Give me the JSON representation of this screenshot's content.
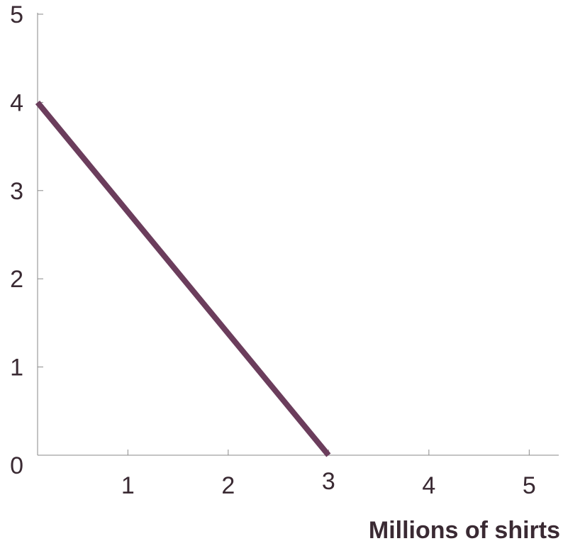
{
  "chart_data": {
    "type": "line",
    "title": "",
    "xlabel": "Millions of shirts",
    "ylabel": "",
    "x_ticks": [
      "1",
      "2",
      "3",
      "4",
      "5"
    ],
    "y_ticks": [
      "0",
      "1",
      "2",
      "3",
      "4",
      "5"
    ],
    "xlim": [
      0.1,
      5.4
    ],
    "ylim": [
      0,
      5
    ],
    "grid": false,
    "series": [
      {
        "x": [
          0.1,
          3
        ],
        "y": [
          4,
          0
        ],
        "color": "#6b3d5c"
      }
    ]
  }
}
